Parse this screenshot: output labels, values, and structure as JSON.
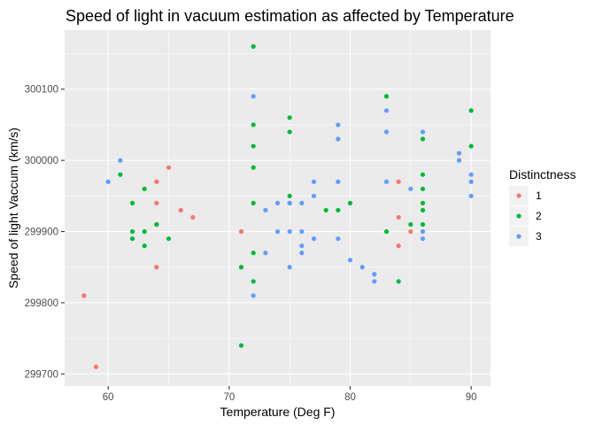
{
  "chart_data": {
    "type": "scatter",
    "title": "Speed of light in vacuum estimation as affected by Temperature",
    "xlabel": "Temperature (Deg F)",
    "ylabel": "Speed of light Vaccum (km/s)",
    "xlim": [
      56.4,
      91.6
    ],
    "ylim": [
      299683,
      300183
    ],
    "x_ticks": [
      60,
      70,
      80,
      90
    ],
    "y_ticks": [
      299700,
      299800,
      299900,
      300000,
      300100
    ],
    "y_tick_labels": [
      "299700",
      "299800",
      "299900",
      "300000",
      "300100"
    ],
    "grid": true,
    "legend_placement": "right",
    "legend_title": "Distinctness",
    "series": [
      {
        "name": "1",
        "color": "#F8766D",
        "points": [
          [
            58,
            299810
          ],
          [
            59,
            299710
          ],
          [
            64,
            299970
          ],
          [
            64,
            299940
          ],
          [
            64,
            299910
          ],
          [
            64,
            299850
          ],
          [
            65,
            299990
          ],
          [
            66,
            299930
          ],
          [
            67,
            299920
          ],
          [
            71,
            299900
          ],
          [
            84,
            299970
          ],
          [
            84,
            299920
          ],
          [
            84,
            299880
          ],
          [
            85,
            299900
          ]
        ]
      },
      {
        "name": "2",
        "color": "#00BA38",
        "points": [
          [
            61,
            299980
          ],
          [
            62,
            299940
          ],
          [
            62,
            299900
          ],
          [
            62,
            299890
          ],
          [
            63,
            299960
          ],
          [
            63,
            299900
          ],
          [
            63,
            299880
          ],
          [
            64,
            299910
          ],
          [
            65,
            299890
          ],
          [
            71,
            299850
          ],
          [
            71,
            299740
          ],
          [
            72,
            300160
          ],
          [
            72,
            300050
          ],
          [
            72,
            300020
          ],
          [
            72,
            299990
          ],
          [
            72,
            299940
          ],
          [
            72,
            299870
          ],
          [
            72,
            299830
          ],
          [
            75,
            300060
          ],
          [
            75,
            300040
          ],
          [
            75,
            299950
          ],
          [
            75,
            299940
          ],
          [
            78,
            299930
          ],
          [
            79,
            299930
          ],
          [
            80,
            299940
          ],
          [
            83,
            300090
          ],
          [
            83,
            299900
          ],
          [
            84,
            299830
          ],
          [
            85,
            299910
          ],
          [
            86,
            300030
          ],
          [
            86,
            299980
          ],
          [
            86,
            299960
          ],
          [
            86,
            299940
          ],
          [
            86,
            299930
          ],
          [
            86,
            299910
          ],
          [
            90,
            300070
          ],
          [
            90,
            300020
          ]
        ]
      },
      {
        "name": "3",
        "color": "#619CFF",
        "points": [
          [
            60,
            299970
          ],
          [
            61,
            300000
          ],
          [
            72,
            300090
          ],
          [
            72,
            299810
          ],
          [
            73,
            299930
          ],
          [
            73,
            299870
          ],
          [
            74,
            299940
          ],
          [
            74,
            299900
          ],
          [
            75,
            299940
          ],
          [
            75,
            299900
          ],
          [
            75,
            299850
          ],
          [
            76,
            299940
          ],
          [
            76,
            299900
          ],
          [
            76,
            299880
          ],
          [
            76,
            299870
          ],
          [
            77,
            299970
          ],
          [
            77,
            299950
          ],
          [
            77,
            299890
          ],
          [
            79,
            300050
          ],
          [
            79,
            300030
          ],
          [
            79,
            299970
          ],
          [
            79,
            299890
          ],
          [
            80,
            299860
          ],
          [
            81,
            299850
          ],
          [
            82,
            299840
          ],
          [
            82,
            299830
          ],
          [
            83,
            300070
          ],
          [
            83,
            300040
          ],
          [
            83,
            299970
          ],
          [
            85,
            299960
          ],
          [
            86,
            300040
          ],
          [
            86,
            299900
          ],
          [
            86,
            299890
          ],
          [
            89,
            300010
          ],
          [
            89,
            300000
          ],
          [
            90,
            299980
          ],
          [
            90,
            299970
          ],
          [
            90,
            299950
          ]
        ]
      }
    ]
  }
}
